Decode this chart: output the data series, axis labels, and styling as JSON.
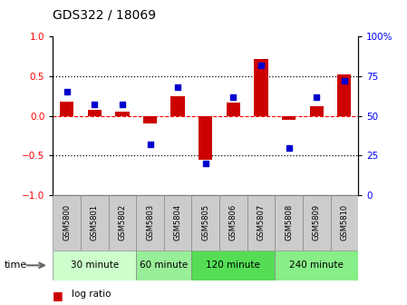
{
  "title": "GDS322 / 18069",
  "samples": [
    "GSM5800",
    "GSM5801",
    "GSM5802",
    "GSM5803",
    "GSM5804",
    "GSM5805",
    "GSM5806",
    "GSM5807",
    "GSM5808",
    "GSM5809",
    "GSM5810"
  ],
  "log_ratio": [
    0.18,
    0.08,
    0.05,
    -0.1,
    0.25,
    -0.55,
    0.17,
    0.72,
    -0.05,
    0.12,
    0.52
  ],
  "percentile": [
    65,
    57,
    57,
    32,
    68,
    20,
    62,
    82,
    30,
    62,
    72
  ],
  "bar_color": "#cc0000",
  "dot_color": "#0000cc",
  "groups": [
    {
      "label": "30 minute",
      "start": 0,
      "end": 3,
      "color": "#ccffcc"
    },
    {
      "label": "60 minute",
      "start": 3,
      "end": 5,
      "color": "#99ee99"
    },
    {
      "label": "120 minute",
      "start": 5,
      "end": 8,
      "color": "#55dd55"
    },
    {
      "label": "240 minute",
      "start": 8,
      "end": 11,
      "color": "#88ee88"
    }
  ],
  "sample_bg": "#cccccc",
  "sample_edge": "#888888",
  "ylim_left": [
    -1,
    1
  ],
  "ylim_right": [
    0,
    100
  ],
  "yticks_left": [
    -1,
    -0.5,
    0,
    0.5,
    1
  ],
  "yticks_right": [
    0,
    25,
    50,
    75,
    100
  ],
  "hlines_dotted": [
    0.5,
    -0.5
  ],
  "hline_dashed_red": 0,
  "bg_color": "#ffffff",
  "bar_width": 0.5
}
